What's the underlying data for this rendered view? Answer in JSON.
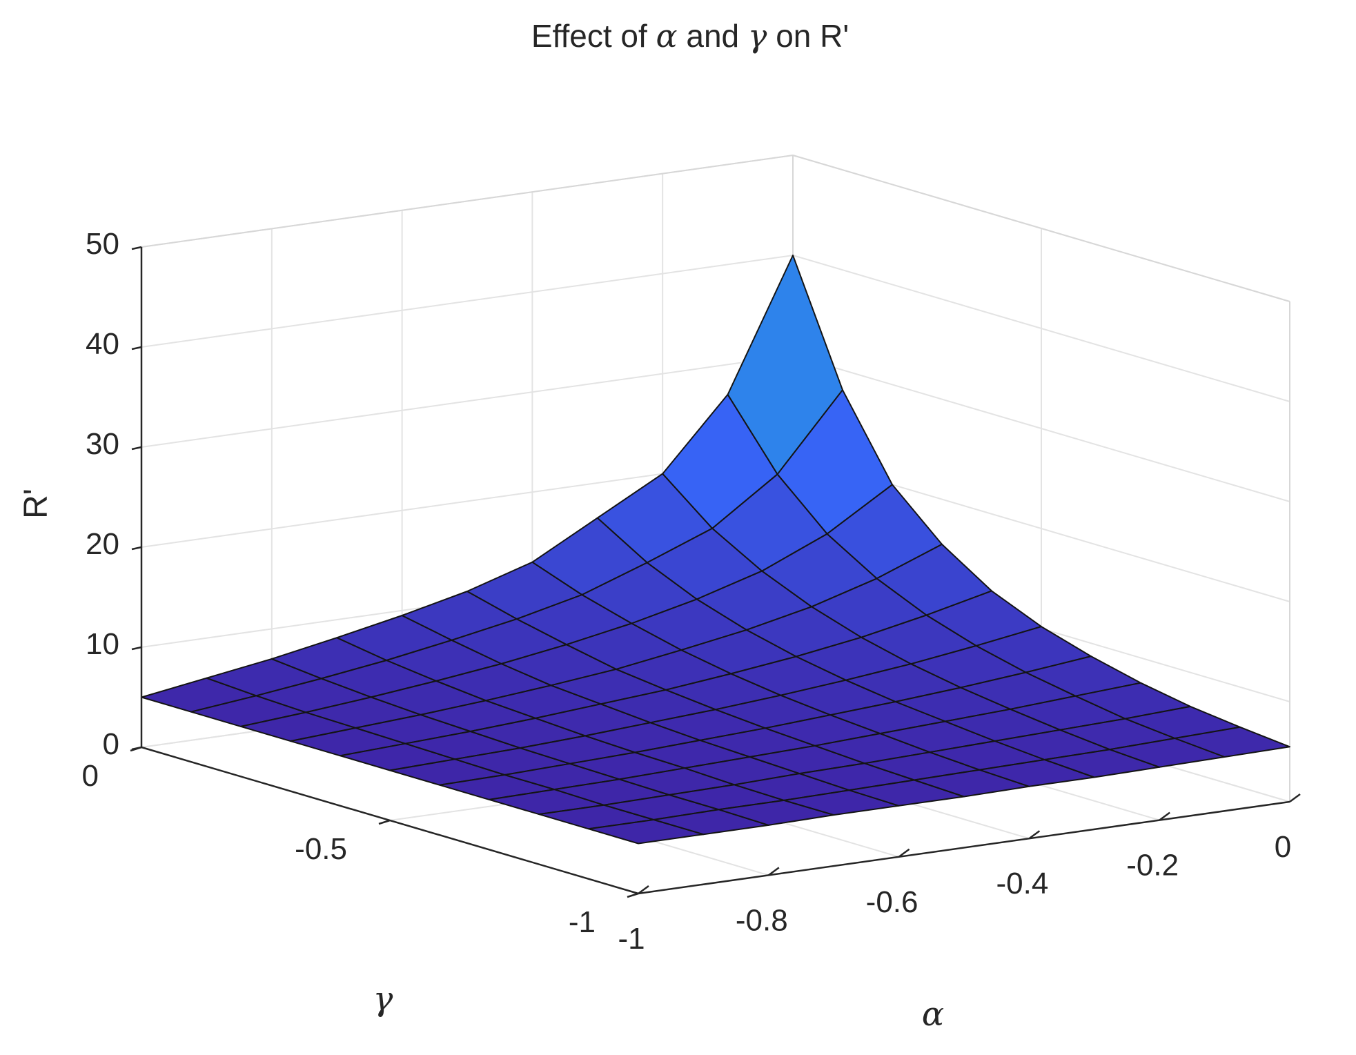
{
  "chart_data": {
    "type": "surface",
    "title": {
      "prefix": "Effect of ",
      "symbol1": "α",
      "middle": " and ",
      "symbol2": "γ",
      "suffix": " on R'"
    },
    "xlabel": "α",
    "ylabel": "γ",
    "zlabel": "R'",
    "xlim": [
      -1,
      0
    ],
    "ylim": [
      -1,
      0
    ],
    "zlim": [
      0,
      50
    ],
    "x_ticks": [
      {
        "value": -1,
        "label": "-1"
      },
      {
        "value": -0.8,
        "label": "-0.8"
      },
      {
        "value": -0.6,
        "label": "-0.6"
      },
      {
        "value": -0.4,
        "label": "-0.4"
      },
      {
        "value": -0.2,
        "label": "-0.2"
      },
      {
        "value": 0,
        "label": "0"
      }
    ],
    "y_ticks": [
      {
        "value": -1,
        "label": "-1"
      },
      {
        "value": -0.5,
        "label": "-0.5"
      },
      {
        "value": 0,
        "label": "0"
      }
    ],
    "z_ticks": [
      {
        "value": 0,
        "label": "0"
      },
      {
        "value": 10,
        "label": "10"
      },
      {
        "value": 20,
        "label": "20"
      },
      {
        "value": 30,
        "label": "30"
      },
      {
        "value": 40,
        "label": "40"
      },
      {
        "value": 50,
        "label": "50"
      }
    ],
    "grid": true,
    "colormap": "parula (low part)",
    "x": [
      -1,
      -0.9,
      -0.8,
      -0.7,
      -0.6,
      -0.5,
      -0.4,
      -0.3,
      -0.2,
      -0.1,
      0
    ],
    "y": [
      0,
      -0.1,
      -0.2,
      -0.3,
      -0.4,
      -0.5,
      -0.6,
      -0.7,
      -0.8,
      -0.9,
      -1
    ],
    "z_by_gamma": [
      [
        5,
        6,
        7,
        8.2,
        9.5,
        11,
        13,
        16.5,
        20,
        27,
        40
      ],
      [
        5,
        5.7,
        6.5,
        7.4,
        8.5,
        9.7,
        11.2,
        13.5,
        16,
        20.5,
        28
      ],
      [
        5,
        5.5,
        6.1,
        6.8,
        7.6,
        8.6,
        9.8,
        11.3,
        13.2,
        16,
        20
      ],
      [
        5,
        5.4,
        5.8,
        6.3,
        6.9,
        7.6,
        8.6,
        9.7,
        11.1,
        13,
        15.5
      ],
      [
        5,
        5.3,
        5.6,
        6,
        6.5,
        7,
        7.7,
        8.5,
        9.5,
        10.8,
        12.3
      ],
      [
        5,
        5.2,
        5.4,
        5.7,
        6.1,
        6.5,
        7,
        7.6,
        8.3,
        9.2,
        10.2
      ],
      [
        5,
        5.1,
        5.3,
        5.5,
        5.8,
        6.1,
        6.5,
        6.9,
        7.4,
        8,
        8.7
      ],
      [
        5,
        5.1,
        5.2,
        5.4,
        5.6,
        5.8,
        6.1,
        6.4,
        6.7,
        7.1,
        7.5
      ],
      [
        5,
        5,
        5.1,
        5.2,
        5.4,
        5.5,
        5.7,
        5.9,
        6.1,
        6.3,
        6.6
      ],
      [
        5,
        5,
        5.1,
        5.1,
        5.2,
        5.3,
        5.4,
        5.5,
        5.6,
        5.8,
        6
      ],
      [
        5,
        5,
        5,
        5.1,
        5.1,
        5.1,
        5.2,
        5.2,
        5.3,
        5.4,
        5.5
      ]
    ]
  }
}
